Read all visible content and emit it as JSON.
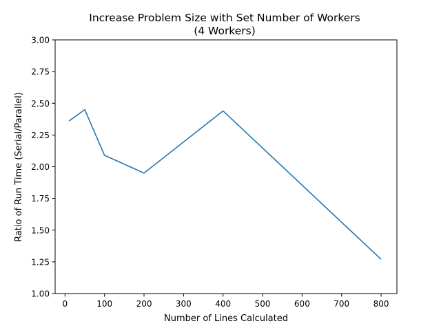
{
  "chart_data": {
    "type": "line",
    "title": "Increase Problem Size with Set Number of Workers",
    "subtitle": "(4 Workers)",
    "xlabel": "Number of Lines Calculated",
    "ylabel": "Ratio of Run Time (Serial/Parallel)",
    "xlim": [
      -25,
      840
    ],
    "ylim": [
      1.0,
      3.0
    ],
    "xticks": [
      0,
      100,
      200,
      300,
      400,
      500,
      600,
      700,
      800
    ],
    "yticks": [
      1.0,
      1.25,
      1.5,
      1.75,
      2.0,
      2.25,
      2.5,
      2.75,
      3.0
    ],
    "xtick_labels": [
      "0",
      "100",
      "200",
      "300",
      "400",
      "500",
      "600",
      "700",
      "800"
    ],
    "ytick_labels": [
      "1.00",
      "1.25",
      "1.50",
      "1.75",
      "2.00",
      "2.25",
      "2.50",
      "2.75",
      "3.00"
    ],
    "grid": false,
    "color": "#1f77b4",
    "series": [
      {
        "x": [
          10,
          50,
          100,
          200,
          400,
          800
        ],
        "values": [
          2.36,
          2.45,
          2.09,
          1.95,
          2.44,
          1.27
        ]
      }
    ]
  }
}
